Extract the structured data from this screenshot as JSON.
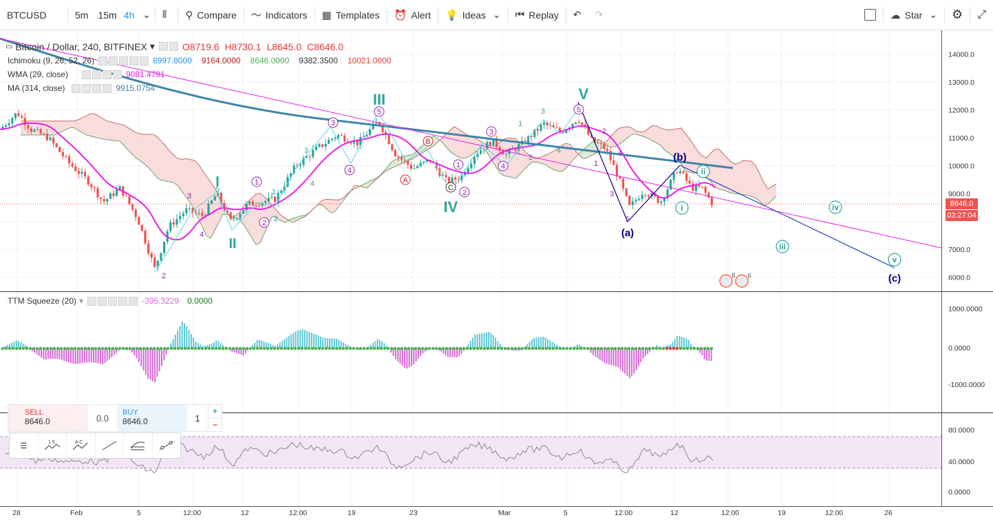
{
  "toolbar": {
    "symbol": "BTCUSD",
    "intervals": [
      "5m",
      "15m",
      "4h"
    ],
    "compare": "Compare",
    "indicators": "Indicators",
    "templates": "Templates",
    "alert": "Alert",
    "ideas": "Ideas",
    "replay": "Replay",
    "star": "Star"
  },
  "main": {
    "title": "Bitcoin / Dollar, 240, BITFINEX",
    "ohlc": {
      "o": "O8719.6",
      "h": "H8730.1",
      "l": "L8645.0",
      "c": "C8646.0"
    },
    "ichimoku": {
      "label": "Ichimoku (9, 26, 52, 26)",
      "v1": "8997.8000",
      "v2": "9164.0000",
      "v3": "8646.0000",
      "v4": "9382.3500",
      "v5": "10021.0000"
    },
    "wma": {
      "label": "WMA (29, close)",
      "value": "9081.4791"
    },
    "ma": {
      "label": "MA (314, close)",
      "value": "9915.0754"
    },
    "price_ticks": [
      "14000.0",
      "13000.0",
      "12000.0",
      "11000.0",
      "10000.0",
      "9000.0",
      "7000.0",
      "6000.0"
    ],
    "last_price": "8646.0",
    "countdown": "03:27:04",
    "event_counts": [
      "8",
      "6"
    ]
  },
  "waves": {
    "primary": [
      "I",
      "II",
      "III",
      "IV",
      "V"
    ],
    "primary_num": [
      "1",
      "2",
      "3",
      "4",
      "5"
    ],
    "sub": [
      "1",
      "2",
      "3",
      "4",
      "5",
      "1",
      "2",
      "3",
      "4",
      "5",
      "1",
      "2",
      "3",
      "4",
      "1",
      "2",
      "3",
      "4",
      "5"
    ],
    "abc": [
      "A",
      "B",
      "C"
    ],
    "corr": [
      "(a)",
      "(b)",
      "(c)"
    ],
    "roman_small": [
      "i",
      "ii",
      "iii",
      "iv",
      "v"
    ]
  },
  "ttm": {
    "label": "TTM Squeeze (20)",
    "v1": "-395.3229",
    "v2": "0.0000",
    "ticks": [
      "1000.0000",
      "0.0000",
      "-1000.0000"
    ]
  },
  "rsi": {
    "ticks": [
      "80.0000",
      "40.0000",
      "0.0000"
    ]
  },
  "time_axis": [
    "28",
    "Feb",
    "12:00",
    "5",
    "12:00",
    "12",
    "12:00",
    "19",
    "23",
    "Mar",
    "5",
    "12:00",
    "12",
    "12:00",
    "19",
    "12:00",
    "26"
  ],
  "trade": {
    "sell_label": "SELL",
    "sell_price": "8646.0",
    "spread": "0.0",
    "buy_label": "BUY",
    "buy_price": "8646.0",
    "qty": "1",
    "plus": "+",
    "minus": "−"
  },
  "ew_tools": [
    "1 5",
    "A C"
  ],
  "colors": {
    "bull": "#26a69a",
    "bear": "#ef5350",
    "wma": "#e91ee9",
    "ma": "#3d85a8",
    "wave": "#26a69a",
    "wave_corr": "#000080",
    "ttm_up": "#5bc8d6",
    "ttm_dn": "#d568d6"
  }
}
